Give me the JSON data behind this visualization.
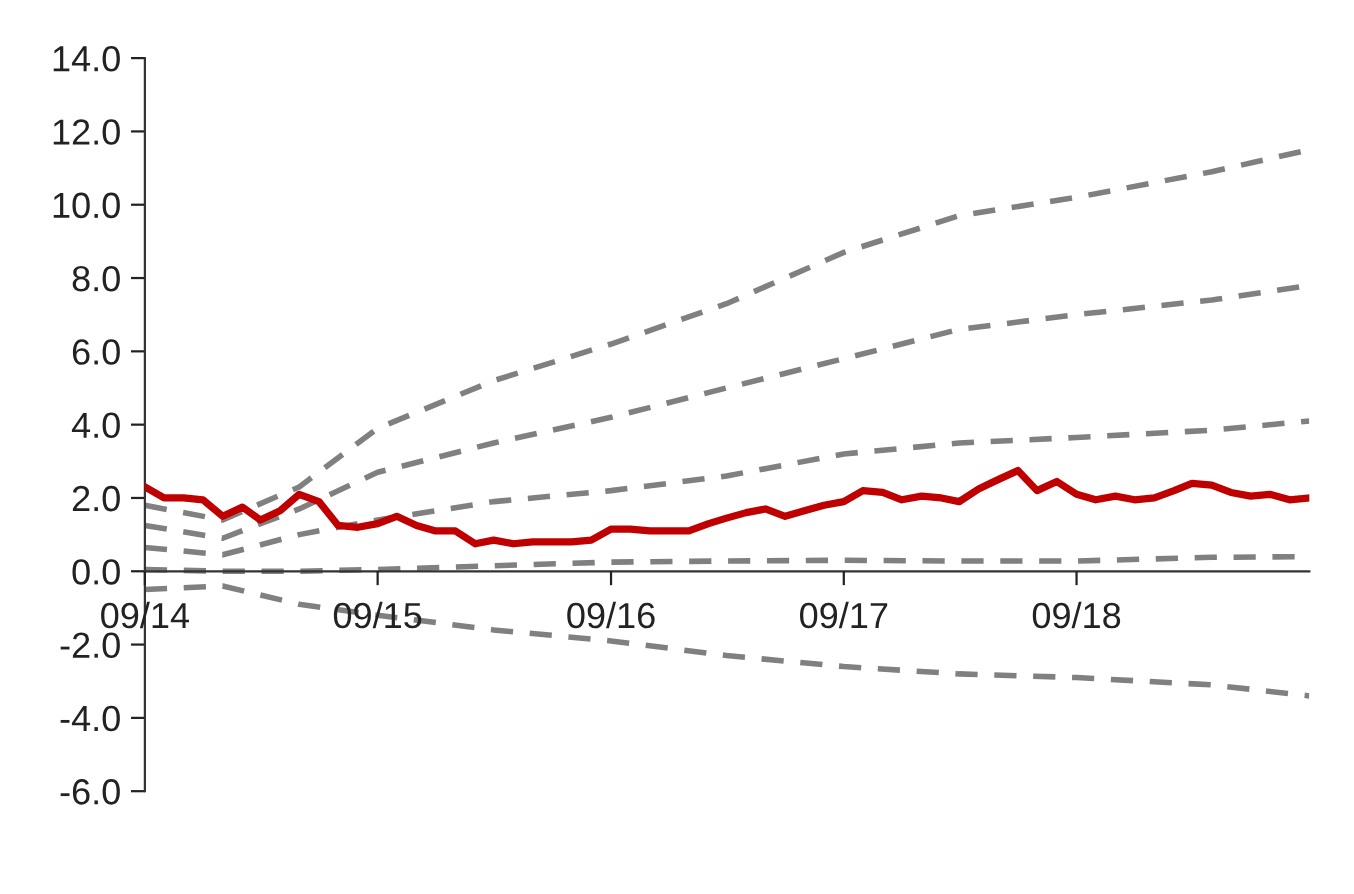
{
  "chart_data": {
    "type": "line",
    "xlim": [
      "2014-09",
      "2019-09"
    ],
    "xticks": [
      {
        "value": "2014-09",
        "label": "09/14"
      },
      {
        "value": "2015-09",
        "label": "09/15"
      },
      {
        "value": "2016-09",
        "label": "09/16"
      },
      {
        "value": "2017-09",
        "label": "09/17"
      },
      {
        "value": "2018-09",
        "label": "09/18"
      }
    ],
    "ylim": [
      -6,
      14
    ],
    "yticks": [
      {
        "value": -6,
        "label": "-6.0"
      },
      {
        "value": -4,
        "label": "-4.0"
      },
      {
        "value": -2,
        "label": "-2.0"
      },
      {
        "value": 0,
        "label": "0.0"
      },
      {
        "value": 2,
        "label": "2.0"
      },
      {
        "value": 4,
        "label": "4.0"
      },
      {
        "value": 6,
        "label": "6.0"
      },
      {
        "value": 8,
        "label": "8.0"
      },
      {
        "value": 10,
        "label": "10.0"
      },
      {
        "value": 12,
        "label": "12.0"
      },
      {
        "value": 14,
        "label": "14.0"
      }
    ],
    "grid": false,
    "legend": false,
    "marker": "none",
    "series": [
      {
        "color": "#808080",
        "line_style": "dashed",
        "x": [
          "2014-09",
          "2015-01",
          "2015-05",
          "2015-09",
          "2016-03",
          "2016-09",
          "2017-03",
          "2017-09",
          "2018-03",
          "2018-09",
          "2019-04",
          "2019-09"
        ],
        "values": [
          1.8,
          1.4,
          2.3,
          3.9,
          5.2,
          6.2,
          7.3,
          8.7,
          9.7,
          10.2,
          10.9,
          11.5
        ]
      },
      {
        "color": "#808080",
        "line_style": "dashed",
        "x": [
          "2014-09",
          "2015-01",
          "2015-05",
          "2015-09",
          "2016-03",
          "2016-09",
          "2017-03",
          "2017-09",
          "2018-03",
          "2018-09",
          "2019-04",
          "2019-09"
        ],
        "values": [
          1.25,
          0.9,
          1.7,
          2.7,
          3.5,
          4.2,
          5.0,
          5.8,
          6.6,
          7.0,
          7.4,
          7.8
        ]
      },
      {
        "color": "#808080",
        "line_style": "dashed",
        "x": [
          "2014-09",
          "2015-01",
          "2015-05",
          "2015-09",
          "2016-03",
          "2016-09",
          "2017-03",
          "2017-09",
          "2018-03",
          "2018-09",
          "2019-04",
          "2019-09"
        ],
        "values": [
          0.65,
          0.45,
          1.0,
          1.4,
          1.9,
          2.2,
          2.6,
          3.2,
          3.5,
          3.65,
          3.85,
          4.1
        ]
      },
      {
        "color": "#808080",
        "line_style": "dashed",
        "x": [
          "2014-09",
          "2015-01",
          "2015-05",
          "2015-09",
          "2016-03",
          "2016-09",
          "2017-03",
          "2017-09",
          "2018-03",
          "2018-09",
          "2019-04",
          "2019-09"
        ],
        "values": [
          0.05,
          0.0,
          0.0,
          0.05,
          0.15,
          0.25,
          0.28,
          0.3,
          0.28,
          0.28,
          0.38,
          0.4
        ]
      },
      {
        "color": "#808080",
        "line_style": "dashed",
        "x": [
          "2014-09",
          "2015-01",
          "2015-05",
          "2015-09",
          "2016-03",
          "2016-09",
          "2017-03",
          "2017-09",
          "2018-03",
          "2018-09",
          "2019-04",
          "2019-09"
        ],
        "values": [
          -0.5,
          -0.4,
          -0.9,
          -1.2,
          -1.6,
          -1.9,
          -2.3,
          -2.6,
          -2.8,
          -2.9,
          -3.1,
          -3.4
        ]
      },
      {
        "color": "#c00000",
        "line_style": "solid",
        "x": [
          "2014-09",
          "2014-10",
          "2014-11",
          "2014-12",
          "2015-01",
          "2015-02",
          "2015-03",
          "2015-04",
          "2015-05",
          "2015-06",
          "2015-07",
          "2015-08",
          "2015-09",
          "2015-10",
          "2015-11",
          "2015-12",
          "2016-01",
          "2016-02",
          "2016-03",
          "2016-04",
          "2016-05",
          "2016-06",
          "2016-07",
          "2016-08",
          "2016-09",
          "2016-10",
          "2016-11",
          "2016-12",
          "2017-01",
          "2017-02",
          "2017-03",
          "2017-04",
          "2017-05",
          "2017-06",
          "2017-07",
          "2017-08",
          "2017-09",
          "2017-10",
          "2017-11",
          "2017-12",
          "2018-01",
          "2018-02",
          "2018-03",
          "2018-04",
          "2018-05",
          "2018-06",
          "2018-07",
          "2018-08",
          "2018-09",
          "2018-10",
          "2018-11",
          "2018-12",
          "2019-01",
          "2019-02",
          "2019-03",
          "2019-04",
          "2019-05",
          "2019-06",
          "2019-07",
          "2019-08",
          "2019-09"
        ],
        "values": [
          2.3,
          2.0,
          2.0,
          1.95,
          1.5,
          1.75,
          1.4,
          1.65,
          2.1,
          1.9,
          1.25,
          1.2,
          1.3,
          1.5,
          1.25,
          1.1,
          1.1,
          0.75,
          0.85,
          0.75,
          0.8,
          0.8,
          0.8,
          0.85,
          1.15,
          1.15,
          1.1,
          1.1,
          1.1,
          1.3,
          1.45,
          1.6,
          1.7,
          1.5,
          1.65,
          1.8,
          1.9,
          2.2,
          2.15,
          1.95,
          2.05,
          2.0,
          1.9,
          2.25,
          2.5,
          2.75,
          2.2,
          2.45,
          2.1,
          1.95,
          2.05,
          1.95,
          2.0,
          2.2,
          2.4,
          2.35,
          2.15,
          2.05,
          2.1,
          1.95,
          2.0
        ]
      }
    ]
  }
}
